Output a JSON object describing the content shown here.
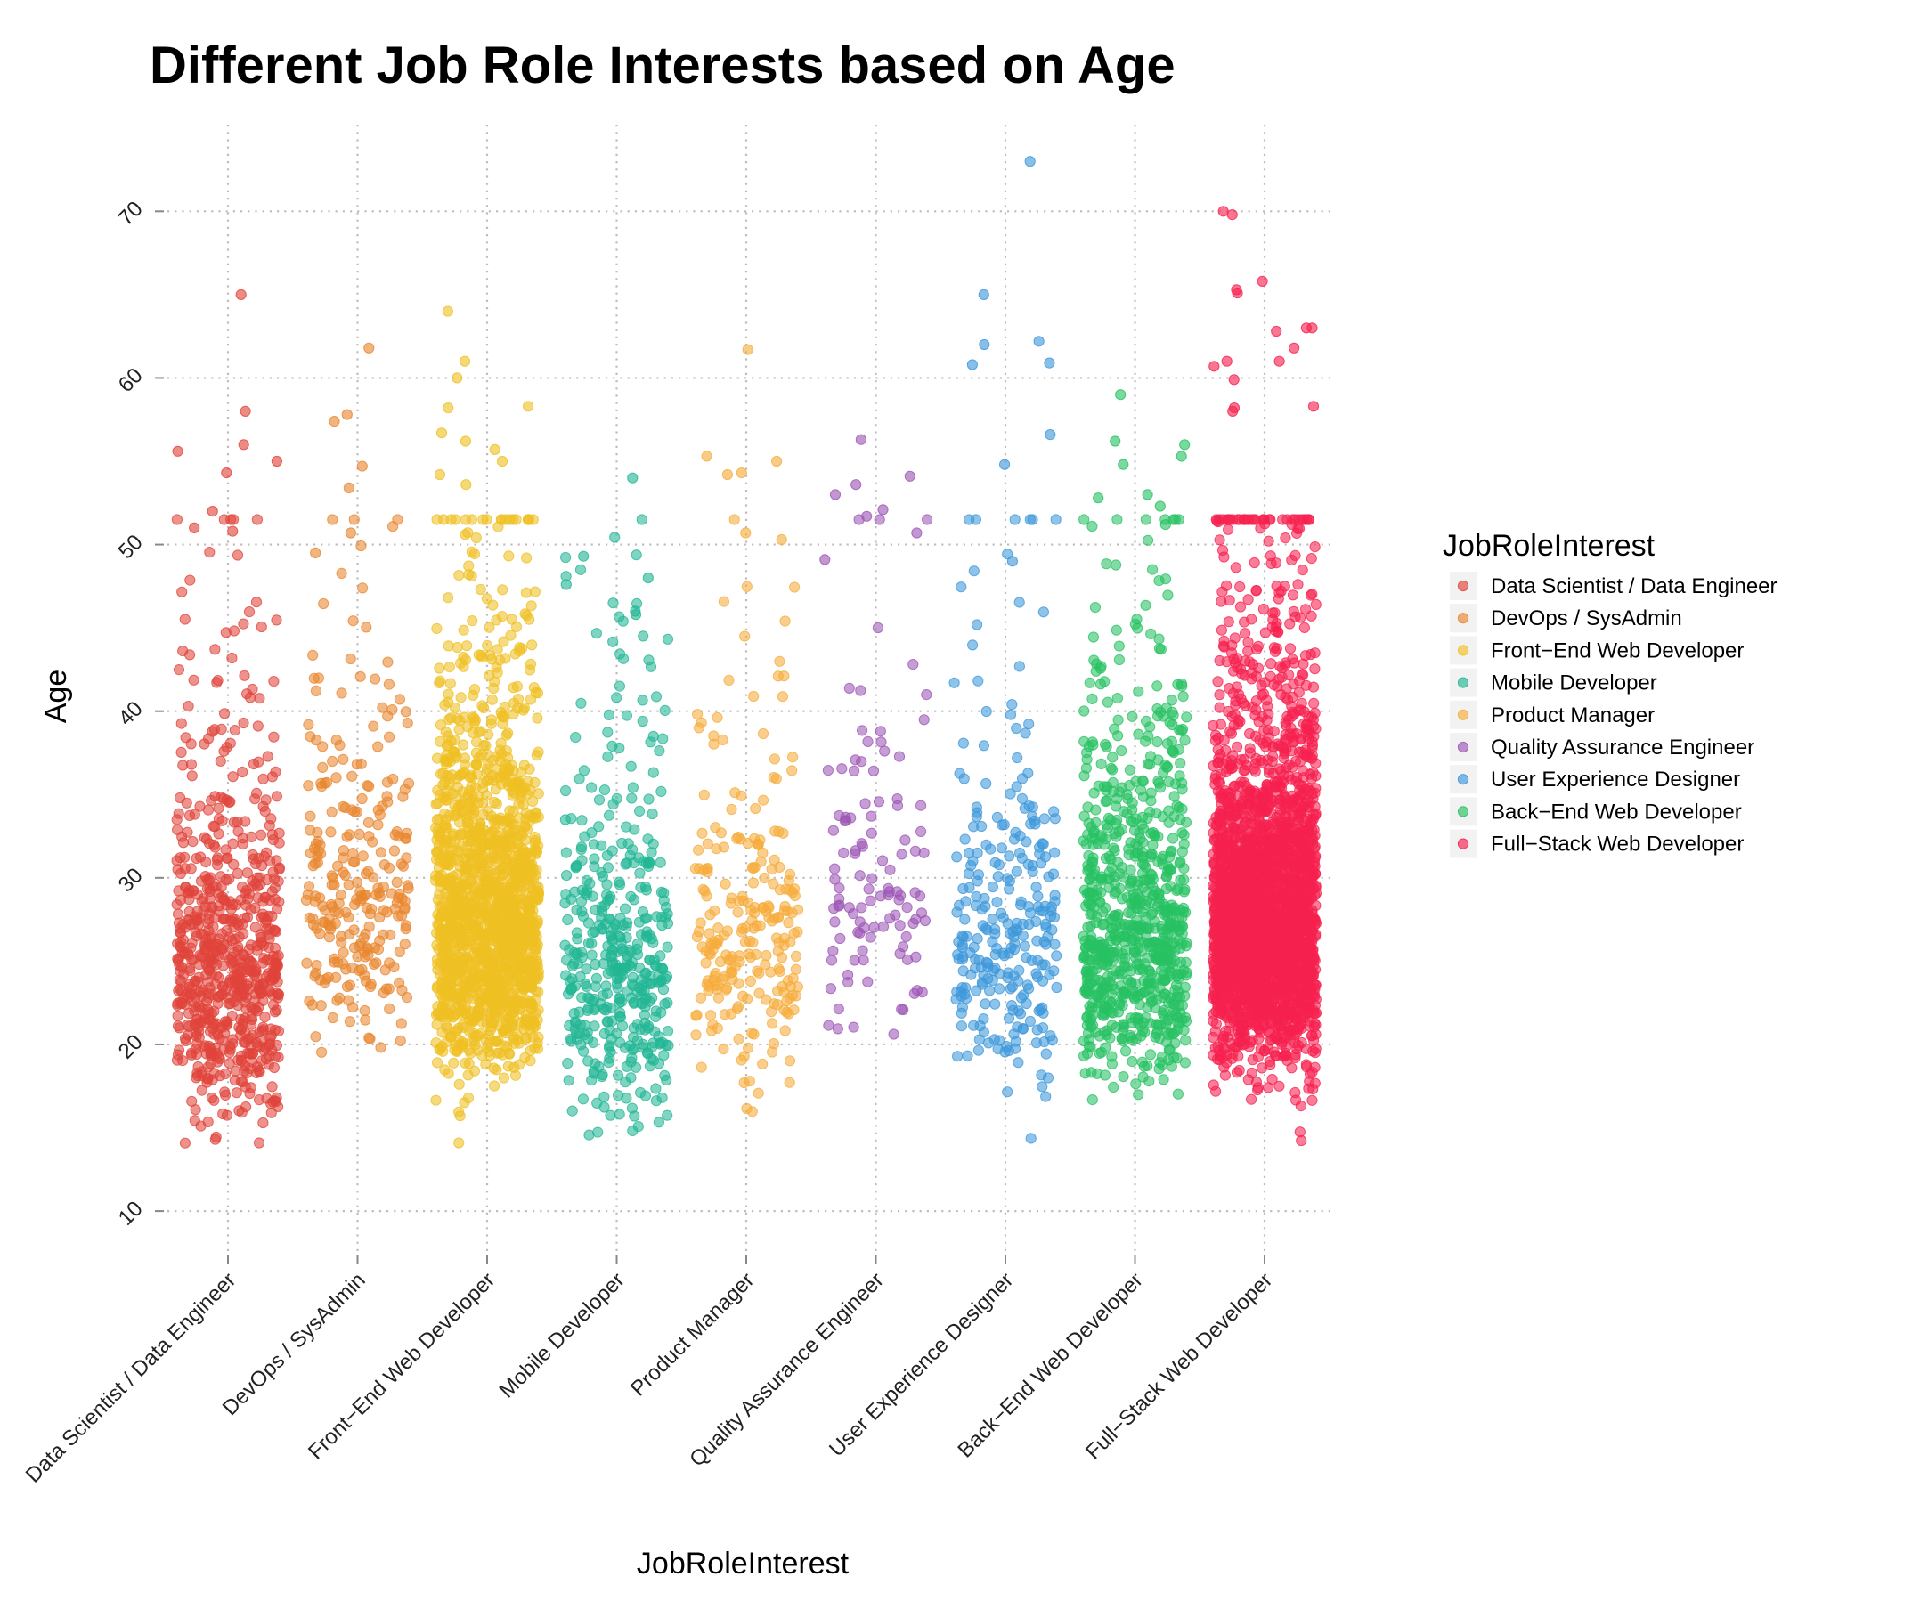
{
  "chart_data": {
    "type": "scatter",
    "jitter": true,
    "title": "Different Job Role Interests based on Age",
    "xlabel": "JobRoleInterest",
    "ylabel": "Age",
    "ylim": [
      7.6,
      75.2
    ],
    "yticks": [
      10,
      20,
      30,
      40,
      50,
      60,
      70
    ],
    "categories": [
      "Data Scientist / Data Engineer",
      "DevOps / SysAdmin",
      "Front−End Web Developer",
      "Mobile Developer",
      "Product Manager",
      "Quality Assurance Engineer",
      "User Experience Designer",
      "Back−End Web Developer",
      "Full−Stack Web Developer"
    ],
    "grid": "dotted",
    "legend": {
      "title": "JobRoleInterest",
      "position": "right"
    },
    "series": [
      {
        "name": "Data Scientist / Data Engineer",
        "color": "#E0443A",
        "approx_points": 720,
        "age_mode": 23,
        "age_spread": 7,
        "outliers": [
          65,
          58,
          56,
          55.6,
          55,
          54.3,
          52,
          51,
          50.8
        ]
      },
      {
        "name": "DevOps / SysAdmin",
        "color": "#E8862E",
        "approx_points": 260,
        "age_mode": 27,
        "age_spread": 7,
        "outliers": [
          61.8,
          57.8,
          57.4,
          54.7,
          53.4,
          50.7,
          49.5
        ]
      },
      {
        "name": "Front−End Web Developer",
        "color": "#EFC023",
        "approx_points": 1600,
        "age_mode": 26,
        "age_spread": 7,
        "outliers": [
          64,
          61,
          60,
          58.3,
          58.2,
          56.7,
          56.2,
          55.7,
          55,
          54.2,
          53.6
        ]
      },
      {
        "name": "Mobile Developer",
        "color": "#22B694",
        "approx_points": 430,
        "age_mode": 23,
        "age_spread": 7,
        "outliers": [
          54,
          49.3,
          48,
          47.6,
          46,
          45.8
        ]
      },
      {
        "name": "Product Manager",
        "color": "#F6AC3C",
        "approx_points": 240,
        "age_mode": 25,
        "age_spread": 7,
        "outliers": [
          61.7,
          55.3,
          55,
          54.3,
          54.2,
          50.7,
          50.3
        ]
      },
      {
        "name": "Quality Assurance Engineer",
        "color": "#9C56B5",
        "approx_points": 110,
        "age_mode": 28,
        "age_spread": 8,
        "outliers": [
          56.3,
          54.1,
          53.6,
          53,
          52.1,
          51.7,
          50.7,
          49.1
        ]
      },
      {
        "name": "User Experience Designer",
        "color": "#3D97DA",
        "approx_points": 270,
        "age_mode": 25,
        "age_spread": 7,
        "outliers": [
          73,
          65,
          62.2,
          62,
          60.9,
          60.8,
          56.6,
          54.8,
          49
        ]
      },
      {
        "name": "Back−End Web Developer",
        "color": "#27C163",
        "approx_points": 820,
        "age_mode": 25,
        "age_spread": 7,
        "outliers": [
          59,
          56.2,
          56,
          55.3,
          54.8,
          53,
          52.8,
          52.3,
          51.2
        ]
      },
      {
        "name": "Full−Stack Web Developer",
        "color": "#F6214F",
        "approx_points": 2700,
        "age_mode": 26,
        "age_spread": 7,
        "outliers": [
          70,
          69.8,
          65.8,
          65.3,
          65.1,
          63,
          63,
          62.8,
          61.8,
          61,
          61,
          60.7,
          59.9,
          58.3,
          58.2,
          58
        ]
      }
    ]
  }
}
